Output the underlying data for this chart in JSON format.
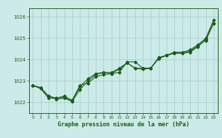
{
  "title": "Graphe pression niveau de la mer (hPa)",
  "background_color": "#cceae7",
  "grid_color": "#aad4d0",
  "line_color": "#1a5c1a",
  "xlim": [
    -0.5,
    23.5
  ],
  "ylim": [
    1021.5,
    1026.4
  ],
  "yticks": [
    1022,
    1023,
    1024,
    1025,
    1026
  ],
  "xticks": [
    0,
    1,
    2,
    3,
    4,
    5,
    6,
    7,
    8,
    9,
    10,
    11,
    12,
    13,
    14,
    15,
    16,
    17,
    18,
    19,
    20,
    21,
    22,
    23
  ],
  "series": [
    [
      1022.8,
      1022.7,
      1022.3,
      1022.2,
      1022.3,
      1022.1,
      1022.8,
      1022.9,
      1023.2,
      1023.3,
      1023.35,
      1023.4,
      1023.9,
      1023.9,
      1023.6,
      1023.6,
      1024.1,
      1024.2,
      1024.35,
      1024.35,
      1024.45,
      1024.7,
      1025.0,
      1025.85
    ],
    [
      1022.8,
      1022.65,
      1022.2,
      1022.2,
      1022.25,
      1022.05,
      1022.75,
      1023.1,
      1023.35,
      1023.4,
      1023.4,
      1023.6,
      1023.85,
      1023.6,
      1023.6,
      1023.6,
      1024.05,
      1024.2,
      1024.3,
      1024.3,
      1024.35,
      1024.6,
      1024.95,
      1025.7
    ],
    [
      1022.8,
      1022.65,
      1022.3,
      1022.15,
      1022.2,
      1022.05,
      1022.6,
      1023.0,
      1023.3,
      1023.4,
      1023.35,
      1023.55,
      1023.85,
      1023.6,
      1023.55,
      1023.6,
      1024.05,
      1024.2,
      1024.3,
      1024.3,
      1024.4,
      1024.65,
      1024.9,
      1025.7
    ]
  ]
}
